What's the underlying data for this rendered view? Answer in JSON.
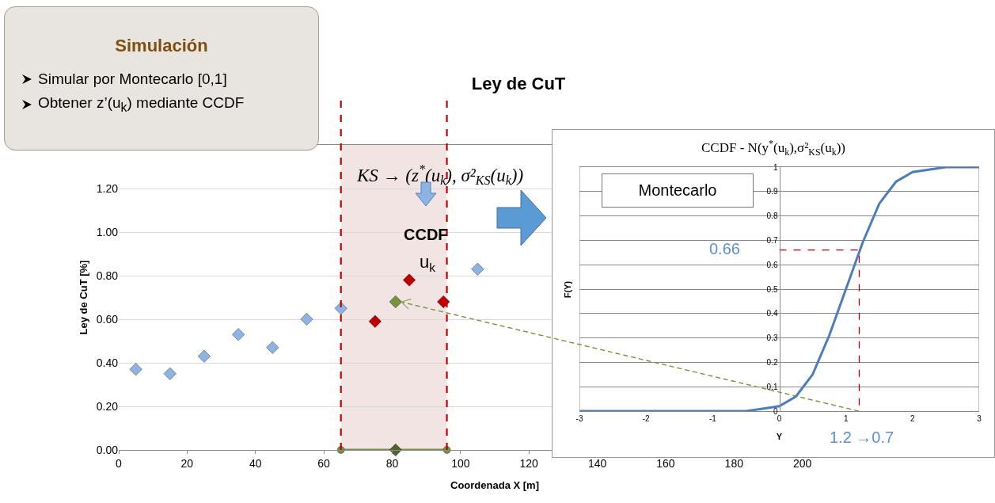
{
  "chart_data": [
    {
      "type": "scatter",
      "title": "Ley de CuT",
      "xlabel": "Coordenada X [m]",
      "ylabel": "Ley de CuT [%]",
      "marker": "diamond",
      "grid": "y",
      "xlim": [
        0,
        220
      ],
      "xticks": [
        0,
        20,
        40,
        60,
        80,
        100,
        120,
        140,
        160,
        180,
        200
      ],
      "ylim": [
        0,
        1.4
      ],
      "yticks": [
        {
          "value": 0,
          "label": "0.00"
        },
        {
          "value": 0.2,
          "label": "0.20"
        },
        {
          "value": 0.4,
          "label": "0.40"
        },
        {
          "value": 0.6,
          "label": "0.60"
        },
        {
          "value": 0.8,
          "label": "0.80"
        },
        {
          "value": 1,
          "label": "1.00"
        },
        {
          "value": 1.2,
          "label": "1.20"
        }
      ],
      "series": [
        {
          "color": "#8db3e2",
          "x": [
            5,
            15,
            25,
            35,
            45,
            55,
            65,
            95,
            105
          ],
          "values": [
            0.37,
            0.35,
            0.43,
            0.53,
            0.47,
            0.6,
            0.65,
            null,
            0.83
          ]
        },
        {
          "color": "#c00000",
          "x": [
            75,
            85,
            95
          ],
          "values": [
            0.59,
            0.78,
            0.68
          ]
        },
        {
          "color": "#77933c",
          "x": [
            81
          ],
          "values": [
            0.68
          ]
        },
        {
          "type": "line",
          "color": "#77933c",
          "marker": "circle",
          "x": [
            65,
            96
          ],
          "values": [
            0,
            0
          ]
        },
        {
          "color": "#4f6228",
          "x": [
            81
          ],
          "values": [
            0
          ]
        }
      ],
      "bands": [
        {
          "axis": "x",
          "from": 65,
          "to": 96,
          "color": "#f2e4e3"
        }
      ],
      "ref_lines": [
        {
          "axis": "x",
          "value": 65,
          "color": "#c00000",
          "line_style": "dashed"
        },
        {
          "axis": "x",
          "value": 96,
          "color": "#c00000",
          "line_style": "dashed"
        }
      ],
      "annotations": [
        "Simulación",
        "Simular por Montecarlo [0,1]",
        "Obtener z’(u$_{k}$) mediante CCDF",
        "KS → (z$^{*}$(u$_{k}$), σ²$_{KS}$(u$_{k}$))",
        "CCDF",
        "u$_{k}$"
      ]
    },
    {
      "type": "line",
      "title": "CCDF - N(y$^{*}$(u$_{k}$),σ²$_{KS}$(u$_{k}$))",
      "xlabel": "Y",
      "ylabel": "F(Y)",
      "grid": "y",
      "xlim": [
        -3,
        3
      ],
      "xticks": [
        -3,
        -2,
        -1,
        0,
        1,
        2,
        3
      ],
      "ylim": [
        0,
        1
      ],
      "yticks": [
        0,
        0.1,
        0.2,
        0.3,
        0.4,
        0.5,
        0.6,
        0.7,
        0.8,
        0.9,
        1
      ],
      "series": [
        {
          "color": "#4a7ebb",
          "x": [
            -3,
            -1,
            -0.5,
            -0.25,
            0,
            0.25,
            0.5,
            0.75,
            1,
            1.25,
            1.5,
            1.75,
            2,
            2.5,
            3
          ],
          "values": [
            0,
            0,
            0,
            0.01,
            0.02,
            0.06,
            0.15,
            0.31,
            0.5,
            0.69,
            0.85,
            0.94,
            0.98,
            1,
            1
          ]
        },
        {
          "color": "#c00000",
          "line_style": "dashed",
          "x": [
            0,
            1.2,
            1.2
          ],
          "values": [
            0.66,
            0.66,
            0
          ]
        }
      ],
      "annotations": [
        "Montecarlo",
        {
          "text": "0.66",
          "x": 0,
          "y": 0.66
        },
        {
          "text": "1.2 →0.7",
          "x": 1.2,
          "y": 0
        }
      ]
    }
  ]
}
